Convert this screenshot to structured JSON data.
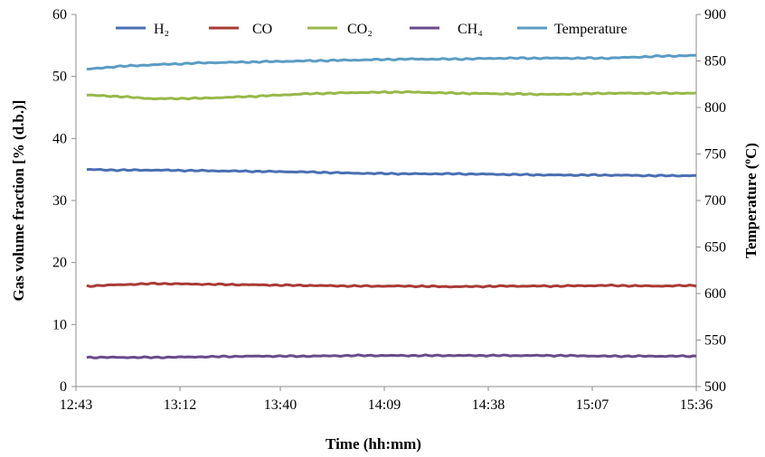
{
  "chart_data": {
    "type": "line",
    "title": "",
    "xlabel": "Time (hh:mm)",
    "ylabel": "Gas volume fraction [% (d.b.)]",
    "y2label": "Temperature (ºC)",
    "x_tick_labels": [
      "12:43",
      "13:12",
      "13:40",
      "14:09",
      "14:38",
      "15:07",
      "15:36"
    ],
    "xlim": [
      "12:43",
      "15:36"
    ],
    "ylim": [
      0,
      60
    ],
    "y_ticks": [
      0,
      10,
      20,
      30,
      40,
      50,
      60
    ],
    "y2lim": [
      500,
      900
    ],
    "y2_ticks": [
      500,
      550,
      600,
      650,
      700,
      750,
      800,
      850,
      900
    ],
    "grid": false,
    "legend_position": "top",
    "x": [
      "12:46",
      "12:54",
      "13:05",
      "13:19",
      "13:33",
      "13:47",
      "14:01",
      "14:15",
      "14:29",
      "14:43",
      "14:57",
      "15:11",
      "15:25",
      "15:36"
    ],
    "series": [
      {
        "name": "H₂",
        "axis": "left",
        "color": "#4a6fb3",
        "values": [
          35.0,
          34.9,
          34.9,
          34.8,
          34.7,
          34.6,
          34.4,
          34.3,
          34.3,
          34.2,
          34.1,
          34.1,
          34.0,
          34.0
        ]
      },
      {
        "name": "CO",
        "axis": "left",
        "color": "#a83b36",
        "values": [
          16.2,
          16.4,
          16.6,
          16.5,
          16.4,
          16.3,
          16.2,
          16.2,
          16.1,
          16.2,
          16.2,
          16.3,
          16.2,
          16.3
        ]
      },
      {
        "name": "CO₂",
        "axis": "left",
        "color": "#97b84a",
        "values": [
          47.0,
          46.8,
          46.4,
          46.5,
          46.8,
          47.2,
          47.4,
          47.5,
          47.3,
          47.2,
          47.1,
          47.3,
          47.3,
          47.3
        ]
      },
      {
        "name": "CH₄",
        "axis": "left",
        "color": "#6a4a8c",
        "values": [
          4.7,
          4.7,
          4.7,
          4.8,
          4.9,
          4.9,
          5.0,
          5.0,
          5.0,
          5.0,
          5.0,
          4.9,
          4.9,
          4.9
        ]
      },
      {
        "name": "Temperature",
        "axis": "right",
        "color": "#5b9cc4",
        "values": [
          841,
          844,
          846,
          848,
          849,
          850,
          851,
          852,
          852,
          853,
          853,
          853,
          855,
          856
        ]
      }
    ]
  }
}
